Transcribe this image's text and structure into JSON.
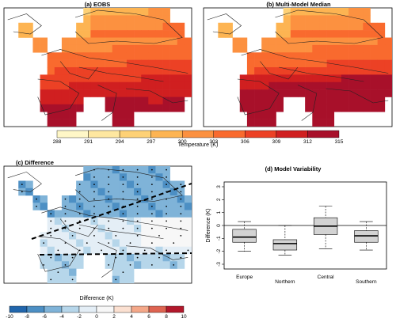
{
  "panels": {
    "a": {
      "title": "(a) EOBS"
    },
    "b": {
      "title": "(b) Multi-Model Median"
    },
    "c": {
      "title": "(c) Difference"
    },
    "d": {
      "title": "(d) Model Variability"
    }
  },
  "colorbar_temperature": {
    "label": "Temperature (K)",
    "ticks": [
      288,
      291,
      294,
      297,
      300,
      303,
      306,
      309,
      312,
      315
    ],
    "colors": [
      "#FFF7C7",
      "#FEE7A0",
      "#FED176",
      "#FDB452",
      "#FC9140",
      "#F96A2E",
      "#EC4125",
      "#D01F20",
      "#A8102A"
    ]
  },
  "colorbar_difference": {
    "label": "Difference (K)",
    "ticks": [
      -10,
      -8,
      -6,
      -4,
      -2,
      0,
      2,
      4,
      6,
      8,
      10
    ],
    "colors": [
      "#2166AC",
      "#4C8FC4",
      "#7FB3D8",
      "#B6D6EA",
      "#E4EEF6",
      "#F7F7F7",
      "#FBE0D1",
      "#F4A889",
      "#DE6451",
      "#B2182B"
    ]
  },
  "chart_data": {
    "type": "box",
    "title": "(d) Model Variability",
    "ylabel": "Difference (K)",
    "ylim": [
      -3,
      3
    ],
    "yticks": [
      -3,
      -2,
      -1,
      0,
      1,
      2,
      3
    ],
    "categories": [
      "Europe",
      "Northern",
      "Central",
      "Southern"
    ],
    "boxes": [
      {
        "category": "Europe",
        "min": -2.0,
        "q1": -1.3,
        "median": -0.9,
        "q3": -0.3,
        "max": 0.3
      },
      {
        "category": "Northern",
        "min": -2.3,
        "q1": -1.9,
        "median": -1.4,
        "q3": -1.1,
        "max": 0.0
      },
      {
        "category": "Central",
        "min": -1.8,
        "q1": -0.7,
        "median": -0.05,
        "q3": 0.6,
        "max": 1.5
      },
      {
        "category": "Southern",
        "min": -1.9,
        "q1": -1.3,
        "median": -0.8,
        "q3": -0.4,
        "max": 0.3
      }
    ],
    "reference_line": 0,
    "box_color": "#D3D3D3",
    "grid": false
  }
}
